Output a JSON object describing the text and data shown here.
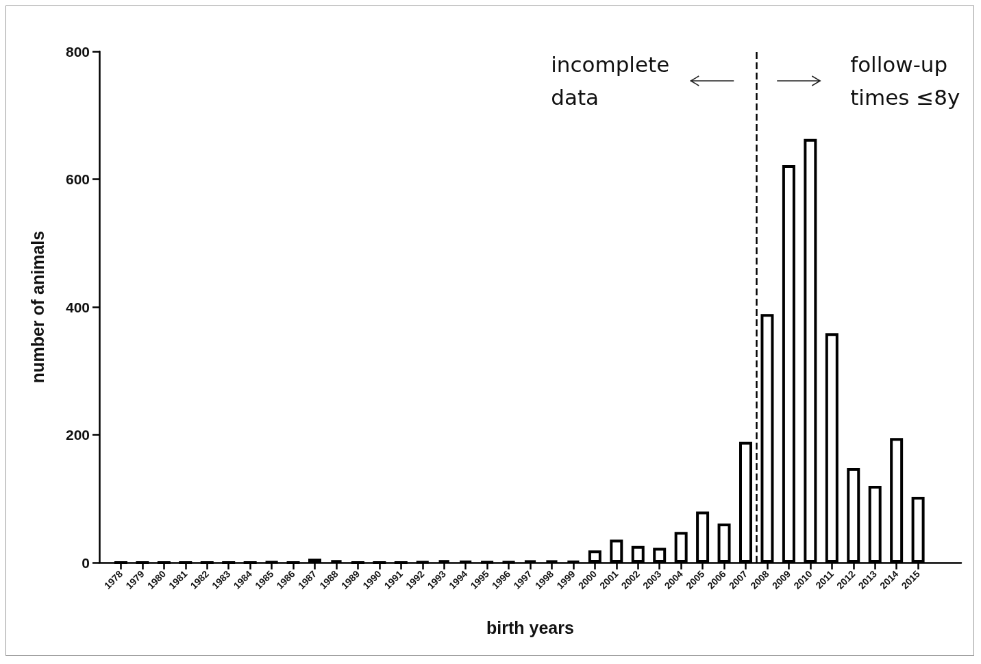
{
  "chart_data": {
    "type": "bar",
    "xlabel": "birth years",
    "ylabel": "number of animals",
    "x": [
      1978,
      1979,
      1980,
      1981,
      1982,
      1983,
      1984,
      1985,
      1986,
      1987,
      1988,
      1989,
      1990,
      1991,
      1992,
      1993,
      1994,
      1995,
      1996,
      1997,
      1998,
      1999,
      2000,
      2001,
      2002,
      2003,
      2004,
      2005,
      2006,
      2007,
      2008,
      2009,
      2010,
      2011,
      2012,
      2013,
      2014,
      2015
    ],
    "values": [
      0,
      0,
      0,
      0,
      0,
      0,
      0,
      1,
      0,
      6,
      4,
      0,
      0,
      0,
      1,
      4,
      2,
      1,
      1,
      3,
      3,
      2,
      19,
      36,
      26,
      23,
      48,
      80,
      61,
      189,
      389,
      622,
      663,
      359,
      148,
      120,
      195,
      103
    ],
    "color": "#000000",
    "xlim": [
      1977,
      2017
    ],
    "xticks": [
      1978,
      1979,
      1980,
      1981,
      1982,
      1983,
      1984,
      1985,
      1986,
      1987,
      1988,
      1989,
      1990,
      1991,
      1992,
      1993,
      1994,
      1995,
      1996,
      1997,
      1998,
      1999,
      2000,
      2001,
      2002,
      2003,
      2004,
      2005,
      2006,
      2007,
      2008,
      2009,
      2010,
      2011,
      2012,
      2013,
      2014,
      2015
    ],
    "ylim": [
      0,
      800
    ],
    "yticks": [
      0,
      200,
      400,
      600,
      800
    ],
    "grid": false,
    "ref_lines": [
      {
        "axis": "x",
        "value": 2007.5,
        "line_style": "dashed",
        "color": "#000000"
      }
    ],
    "annotations": [
      "incomplete\ndata",
      "follow-up\ntimes ≤8y"
    ]
  }
}
